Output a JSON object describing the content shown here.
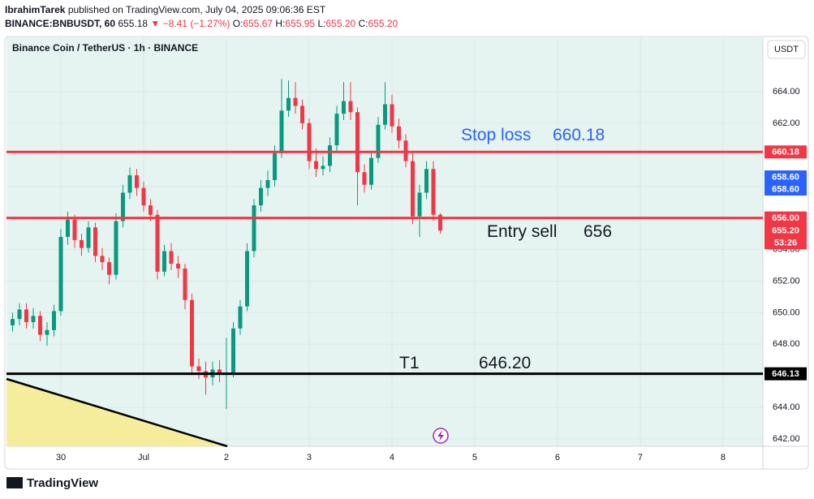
{
  "header": {
    "author": "IbrahimTarek",
    "published": "published on TradingView.com, July 04, 2025 09:06:36 EST",
    "symbol": "BINANCE:BNBUSDT, 60",
    "last": "655.18",
    "change": "▼ −8.41 (−1.27%)",
    "ohlc": [
      {
        "key": "O:",
        "value": "655.67"
      },
      {
        "key": "H:",
        "value": "655.95"
      },
      {
        "key": "L:",
        "value": "655.20"
      },
      {
        "key": "C:",
        "value": "655.20"
      }
    ]
  },
  "footer": {
    "brand": "TradingView"
  },
  "chart_data": {
    "type": "candlestick",
    "title": "Binance Coin / TetherUS · 1h · BINANCE",
    "currency": "USDT",
    "x": [
      -14,
      -12,
      -10,
      -8,
      -6,
      -4,
      -2,
      0,
      2,
      4,
      6,
      8,
      10,
      12,
      14,
      16,
      18,
      20,
      22,
      24,
      26,
      28,
      30,
      32,
      34,
      36,
      38,
      40,
      42,
      44,
      46,
      48,
      50,
      52,
      54,
      56,
      58,
      60,
      62,
      64,
      66,
      68,
      70,
      72,
      74,
      76,
      78,
      80,
      82,
      84,
      86,
      88,
      90,
      92,
      94,
      96,
      98,
      100,
      102,
      104,
      106,
      108,
      110
    ],
    "open": [
      649.2,
      649.6,
      650.2,
      649.4,
      649.8,
      648.6,
      648.9,
      650.1,
      654.8,
      655.9,
      654.6,
      654.1,
      655.4,
      653.6,
      653.2,
      652.4,
      655.8,
      657.6,
      658.7,
      657.9,
      656.8,
      656.2,
      652.6,
      653.9,
      653.1,
      652.8,
      650.8,
      646.6,
      646.3,
      645.9,
      646.4,
      646.1,
      646.2,
      649.0,
      650.4,
      653.9,
      656.8,
      657.9,
      658.4,
      660.1,
      662.8,
      663.6,
      663.1,
      662.0,
      659.6,
      659.1,
      659.3,
      660.6,
      662.6,
      663.4,
      662.7,
      658.9,
      658.1,
      659.8,
      661.9,
      663.2,
      661.8,
      660.9,
      659.6,
      656.1,
      657.6,
      659.1,
      656.2
    ],
    "high": [
      650.0,
      650.6,
      650.6,
      650.3,
      650.1,
      649.4,
      650.5,
      655.3,
      656.4,
      656.2,
      655.0,
      655.8,
      655.7,
      654.1,
      653.5,
      656.3,
      658.1,
      659.2,
      659.1,
      658.3,
      657.2,
      656.5,
      654.3,
      654.4,
      653.6,
      653.1,
      651.2,
      647.1,
      646.9,
      646.9,
      647.0,
      648.4,
      649.4,
      650.8,
      654.4,
      657.2,
      658.4,
      659.0,
      660.6,
      664.8,
      664.7,
      664.6,
      663.5,
      662.3,
      660.4,
      659.9,
      661.1,
      663.1,
      664.6,
      664.6,
      663.0,
      659.4,
      660.2,
      662.4,
      664.6,
      663.8,
      662.3,
      661.3,
      660.1,
      658.1,
      659.6,
      659.6,
      656.3
    ],
    "low": [
      648.8,
      649.2,
      649.0,
      649.0,
      648.2,
      647.9,
      648.5,
      649.8,
      654.3,
      654.1,
      653.6,
      653.8,
      653.2,
      652.7,
      651.8,
      652.1,
      655.4,
      657.2,
      657.4,
      656.4,
      655.8,
      652.1,
      652.3,
      652.7,
      652.2,
      650.2,
      646.1,
      645.8,
      644.8,
      645.4,
      645.6,
      643.9,
      645.9,
      648.6,
      650.1,
      653.5,
      656.4,
      657.4,
      658.0,
      659.8,
      662.4,
      662.6,
      661.6,
      659.1,
      658.6,
      658.7,
      658.9,
      660.2,
      662.2,
      662.2,
      656.8,
      657.6,
      657.8,
      659.5,
      661.6,
      661.4,
      660.4,
      659.2,
      655.6,
      654.8,
      657.2,
      655.8,
      655.0
    ],
    "close": [
      649.6,
      650.2,
      649.4,
      649.8,
      648.6,
      648.9,
      650.1,
      654.8,
      655.9,
      654.6,
      654.1,
      655.4,
      653.6,
      653.2,
      652.4,
      655.8,
      657.6,
      658.7,
      657.9,
      656.8,
      656.2,
      652.6,
      653.9,
      653.1,
      652.8,
      650.8,
      646.6,
      646.3,
      645.9,
      646.4,
      646.1,
      646.2,
      649.0,
      650.4,
      653.9,
      656.8,
      657.9,
      658.4,
      660.1,
      662.8,
      663.6,
      663.1,
      662.0,
      659.6,
      659.1,
      659.3,
      660.6,
      662.6,
      663.4,
      662.7,
      658.9,
      658.1,
      659.8,
      661.9,
      663.2,
      661.8,
      660.9,
      659.6,
      656.1,
      657.6,
      659.1,
      656.2,
      655.2
    ],
    "up_color": "#089981",
    "down_color": "#f23645",
    "xlim": [
      -15.76,
      203.53
    ],
    "xticks": [
      {
        "value": 0,
        "label": "30"
      },
      {
        "value": 24,
        "label": "Jul"
      },
      {
        "value": 48,
        "label": "2"
      },
      {
        "value": 72,
        "label": "3"
      },
      {
        "value": 96,
        "label": "4"
      },
      {
        "value": 120,
        "label": "5"
      },
      {
        "value": 144,
        "label": "6"
      },
      {
        "value": 168,
        "label": "7"
      },
      {
        "value": 192,
        "label": "8"
      }
    ],
    "ylim": [
      641.54,
      667.44
    ],
    "yticks": [
      {
        "value": 642,
        "label": "642.00"
      },
      {
        "value": 644,
        "label": "644.00"
      },
      {
        "value": 646,
        "label": "646.00"
      },
      {
        "value": 648,
        "label": "648.00"
      },
      {
        "value": 650,
        "label": "650.00"
      },
      {
        "value": 652,
        "label": "652.00"
      },
      {
        "value": 654,
        "label": "654.00"
      },
      {
        "value": 656,
        "label": "656.00"
      },
      {
        "value": 658,
        "label": "658.00"
      },
      {
        "value": 660,
        "label": "660.00"
      },
      {
        "value": 662,
        "label": "662.00"
      },
      {
        "value": 664,
        "label": "664.00"
      }
    ],
    "grid": true,
    "levels": [
      {
        "value": 660.18,
        "color": "#f23645"
      },
      {
        "value": 656,
        "color": "#f23645"
      },
      {
        "value": 646.13,
        "color": "#000000"
      }
    ],
    "price_labels": [
      {
        "value": 660.18,
        "color": "#f23645"
      },
      {
        "value": 658.6,
        "label": "658.60",
        "color": "#2962ff"
      },
      {
        "value": 658.6,
        "label": "658.60",
        "color": "#2962ff"
      },
      {
        "value": 656,
        "label": "656.00",
        "color": "#f23645"
      },
      {
        "value": 655.2,
        "label": "655.20",
        "color": "#f23645"
      },
      {
        "label": "53:26",
        "color": "#f23645"
      },
      {
        "value": 646.13,
        "color": "#000000"
      }
    ],
    "annotations": [
      {
        "text": "Stop loss",
        "price": "660.18",
        "color": "#2962ff"
      },
      {
        "text": "Entry sell",
        "price": "656",
        "color": "#131722"
      },
      {
        "text": "T1",
        "price": "646.20",
        "color": "#131722"
      }
    ]
  }
}
